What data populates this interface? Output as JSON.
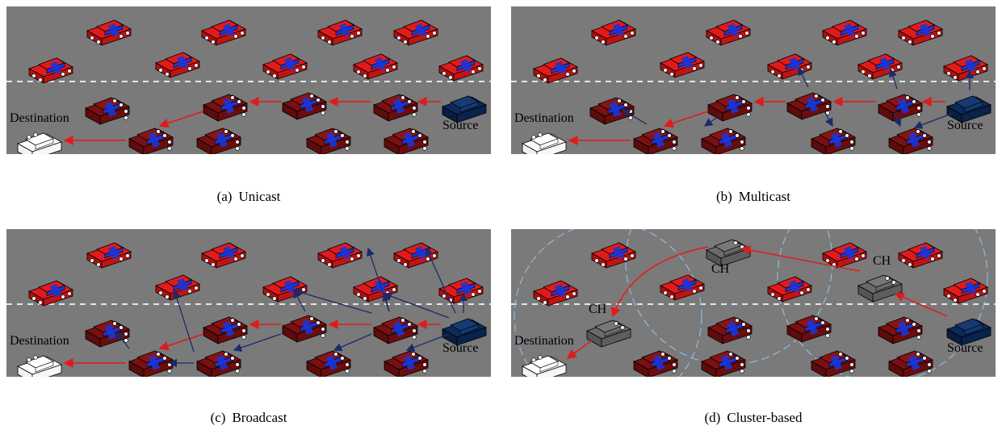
{
  "figure": {
    "panels": [
      {
        "id": "a",
        "caption_label": "(a)",
        "caption_text": "Unicast",
        "text_labels": {
          "destination": "Destination",
          "source": "Source"
        }
      },
      {
        "id": "b",
        "caption_label": "(b)",
        "caption_text": "Multicast",
        "text_labels": {
          "destination": "Destination",
          "source": "Source"
        }
      },
      {
        "id": "c",
        "caption_label": "(c)",
        "caption_text": "Broadcast",
        "text_labels": {
          "destination": "Destination",
          "source": "Source"
        }
      },
      {
        "id": "d",
        "caption_label": "(d)",
        "caption_text": "Cluster-based",
        "text_labels": {
          "destination": "Destination",
          "source": "Source",
          "ch": "CH"
        }
      }
    ]
  },
  "colors": {
    "road": "#7a7a7a",
    "lane_divider": "#e6e6e6",
    "car_red": "#e11b1b",
    "car_maroon": "#7b1010",
    "car_navy": "#0c2a5a",
    "car_white": "#ffffff",
    "car_gray": "#6a6a6a",
    "stripe_blue": "#1a35d8",
    "arrow_red": "#e11b1b",
    "arrow_navy": "#1c2a6b",
    "cluster_circle": "#8fb6d8"
  }
}
